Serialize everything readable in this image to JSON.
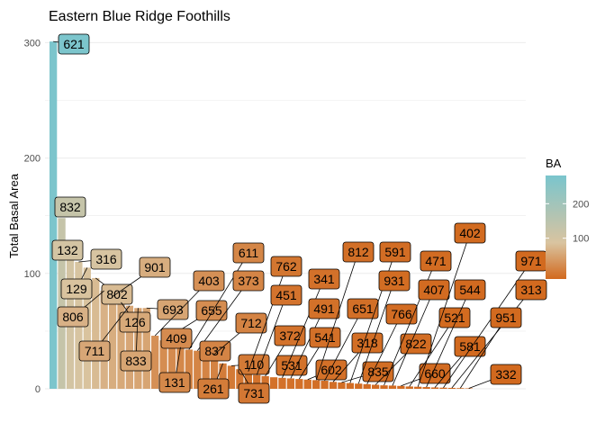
{
  "chart_data": {
    "type": "bar",
    "title": "Eastern Blue Ridge Foothills",
    "xlabel": "",
    "ylabel": "Total Basal Area",
    "ylim": [
      0,
      305
    ],
    "yticks": [
      0,
      100,
      200,
      300
    ],
    "grid": true,
    "legend": {
      "title": "BA",
      "placement": "right",
      "ticks": [
        100,
        200
      ],
      "colors": {
        "low": "#d2691e",
        "mid": "#d9c4a0",
        "high": "#7ac5cd"
      }
    },
    "labels": [
      "621",
      "832",
      "132",
      "316",
      "129",
      "802",
      "806",
      "901",
      "126",
      "711",
      "833",
      "693",
      "403",
      "655",
      "409",
      "131",
      "611",
      "373",
      "837",
      "712",
      "261",
      "110",
      "731",
      "762",
      "451",
      "372",
      "531",
      "341",
      "491",
      "541",
      "602",
      "812",
      "651",
      "318",
      "835",
      "591",
      "931",
      "766",
      "822",
      "471",
      "407",
      "660",
      "521",
      "402",
      "544",
      "581",
      "971",
      "313",
      "951",
      "332"
    ],
    "values": [
      301,
      148,
      120,
      110,
      105,
      96,
      85,
      80,
      75,
      72,
      70,
      70,
      46,
      42,
      40,
      36,
      34,
      33,
      32,
      30,
      22,
      20,
      17,
      15,
      12,
      11,
      10,
      9.5,
      9,
      8.5,
      8,
      7.5,
      7,
      6,
      5.5,
      5,
      4.5,
      4,
      3.5,
      3,
      2.8,
      2.5,
      2,
      1.8,
      1.5,
      1.2,
      1,
      0.8,
      0.6,
      0.4
    ]
  }
}
